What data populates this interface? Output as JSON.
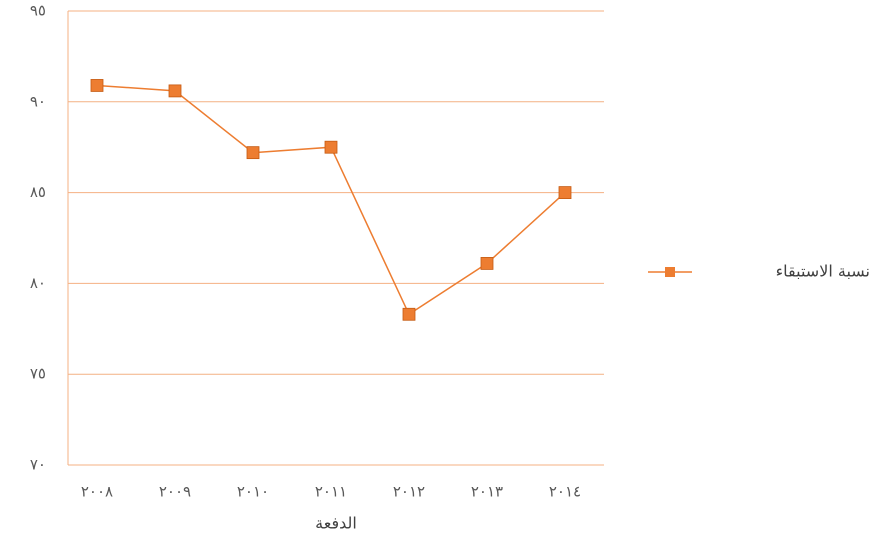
{
  "chart_data": {
    "type": "line",
    "x_label": "الدفعة",
    "categories": [
      "٢٠٠٨",
      "٢٠٠٩",
      "٢٠١٠",
      "٢٠١١",
      "٢٠١٢",
      "٢٠١٣",
      "٢٠١٤"
    ],
    "series": [
      {
        "name": "نسبة الاستبقاء",
        "color": "#ed7d31",
        "values": [
          90.9,
          90.6,
          87.2,
          87.5,
          78.3,
          81.1,
          85.0
        ]
      }
    ],
    "ylim": [
      70,
      95
    ],
    "yticks": [
      {
        "value": 70,
        "label": "٧٠"
      },
      {
        "value": 75,
        "label": "٧٥"
      },
      {
        "value": 80,
        "label": "٨٠"
      },
      {
        "value": 85,
        "label": "٨٥"
      },
      {
        "value": 90,
        "label": "٩٠"
      },
      {
        "value": 95,
        "label": "٩٥"
      }
    ],
    "grid": true,
    "legend": "right"
  }
}
